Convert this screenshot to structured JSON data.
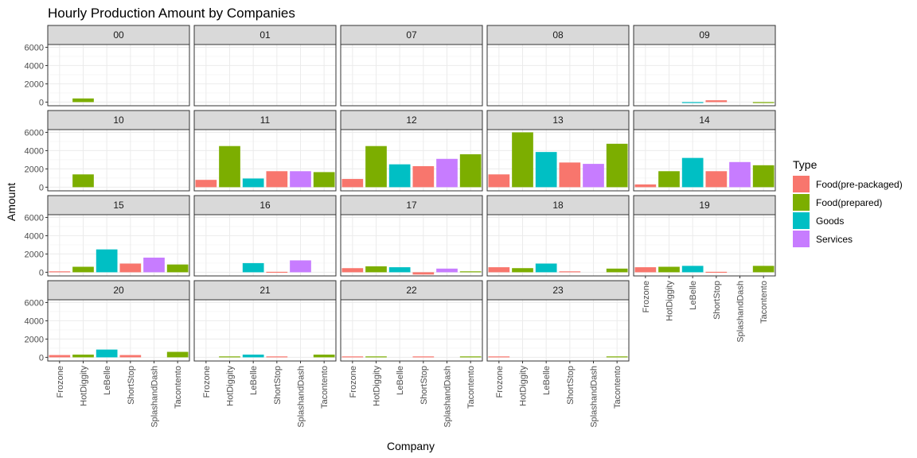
{
  "chart_data": {
    "type": "bar",
    "title": "Hourly Production Amount by Companies",
    "xlabel": "Company",
    "ylabel": "Amount",
    "ylim": [
      -400,
      6300
    ],
    "yticks": [
      0,
      2000,
      4000,
      6000
    ],
    "facet_layout": "wrap 5 columns",
    "grid": true,
    "legend_position": "right",
    "legend_title": "Type",
    "categories": [
      "Frozone",
      "HotDiggity",
      "LeBelle",
      "ShortStop",
      "SplashandDash",
      "Tacontento"
    ],
    "category_types": [
      "Food(pre-packaged)",
      "Food(prepared)",
      "Goods",
      "Food(pre-packaged)",
      "Services",
      "Food(prepared)"
    ],
    "types": [
      {
        "name": "Food(pre-packaged)",
        "color": "#F8766D"
      },
      {
        "name": "Food(prepared)",
        "color": "#7CAE00"
      },
      {
        "name": "Goods",
        "color": "#00BFC4"
      },
      {
        "name": "Services",
        "color": "#C77CFF"
      }
    ],
    "panels": [
      {
        "hour": "00",
        "values": [
          null,
          400,
          null,
          null,
          null,
          null
        ]
      },
      {
        "hour": "01",
        "values": [
          null,
          null,
          null,
          null,
          null,
          null
        ]
      },
      {
        "hour": "07",
        "values": [
          null,
          null,
          null,
          null,
          null,
          null
        ]
      },
      {
        "hour": "08",
        "values": [
          null,
          null,
          null,
          null,
          null,
          null
        ]
      },
      {
        "hour": "09",
        "values": [
          null,
          null,
          -100,
          200,
          null,
          -50
        ]
      },
      {
        "hour": "10",
        "values": [
          null,
          1400,
          null,
          null,
          null,
          null
        ]
      },
      {
        "hour": "11",
        "values": [
          800,
          4500,
          950,
          1750,
          1750,
          1650
        ]
      },
      {
        "hour": "12",
        "values": [
          900,
          4500,
          2500,
          2300,
          3100,
          3600
        ]
      },
      {
        "hour": "13",
        "values": [
          1400,
          6000,
          3850,
          2700,
          2550,
          4750
        ]
      },
      {
        "hour": "14",
        "values": [
          300,
          1750,
          3200,
          1750,
          2750,
          2400
        ]
      },
      {
        "hour": "15",
        "values": [
          100,
          600,
          2500,
          950,
          1600,
          850
        ]
      },
      {
        "hour": "16",
        "values": [
          null,
          null,
          1000,
          50,
          1300,
          null
        ]
      },
      {
        "hour": "17",
        "values": [
          450,
          650,
          550,
          -250,
          400,
          100
        ]
      },
      {
        "hour": "18",
        "values": [
          550,
          450,
          950,
          100,
          null,
          400
        ]
      },
      {
        "hour": "19",
        "values": [
          550,
          600,
          700,
          50,
          null,
          700
        ]
      },
      {
        "hour": "20",
        "values": [
          250,
          300,
          850,
          250,
          null,
          600
        ]
      },
      {
        "hour": "21",
        "values": [
          null,
          100,
          300,
          100,
          null,
          300
        ]
      },
      {
        "hour": "22",
        "values": [
          100,
          100,
          null,
          100,
          null,
          100
        ]
      },
      {
        "hour": "23",
        "values": [
          100,
          null,
          null,
          null,
          null,
          100
        ]
      }
    ]
  }
}
